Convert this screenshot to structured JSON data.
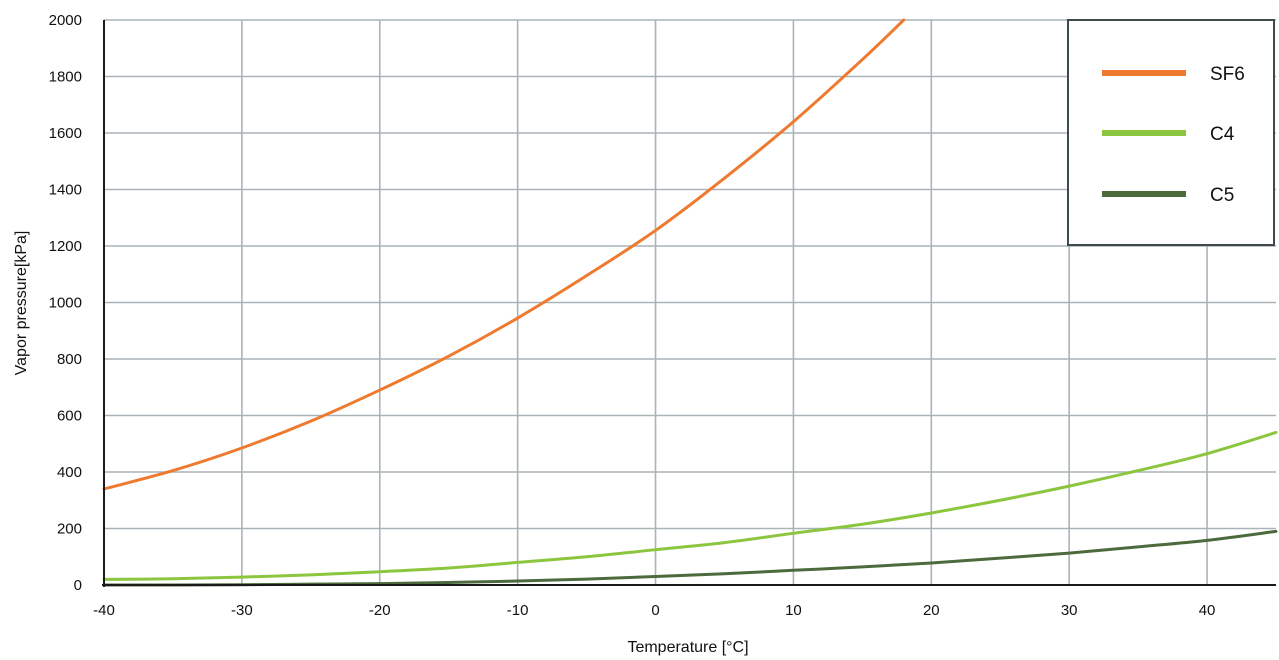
{
  "chart_data": {
    "type": "line",
    "xlabel": "Temperature [°C]",
    "ylabel": "Vapor pressure[kPa]",
    "xlim": [
      -40,
      45
    ],
    "ylim": [
      0,
      2000
    ],
    "x_ticks": [
      -40,
      -30,
      -20,
      -10,
      0,
      10,
      20,
      30,
      40
    ],
    "y_ticks": [
      0,
      200,
      400,
      600,
      800,
      1000,
      1200,
      1400,
      1600,
      1800,
      2000
    ],
    "grid": true,
    "legend_position": "top-right",
    "series": [
      {
        "name": "SF6",
        "color": "#ee7a2f",
        "x": [
          -40,
          -35,
          -30,
          -25,
          -20,
          -15,
          -10,
          -5,
          0,
          5,
          10,
          15,
          18
        ],
        "y": [
          340,
          405,
          485,
          580,
          690,
          810,
          945,
          1095,
          1255,
          1440,
          1640,
          1860,
          2000
        ]
      },
      {
        "name": "C4",
        "color": "#8cc63f",
        "x": [
          -40,
          -35,
          -30,
          -25,
          -20,
          -15,
          -10,
          -5,
          0,
          5,
          10,
          15,
          20,
          25,
          30,
          35,
          40,
          45
        ],
        "y": [
          20,
          22,
          28,
          36,
          47,
          60,
          80,
          100,
          125,
          150,
          183,
          215,
          255,
          300,
          350,
          405,
          465,
          540
        ]
      },
      {
        "name": "C5",
        "color": "#4d6a3d",
        "x": [
          -40,
          -35,
          -30,
          -25,
          -20,
          -15,
          -10,
          -5,
          0,
          5,
          10,
          15,
          20,
          25,
          30,
          35,
          40,
          45
        ],
        "y": [
          0,
          0,
          1,
          3,
          5,
          9,
          14,
          21,
          30,
          40,
          52,
          64,
          78,
          95,
          113,
          135,
          158,
          190
        ]
      }
    ]
  }
}
